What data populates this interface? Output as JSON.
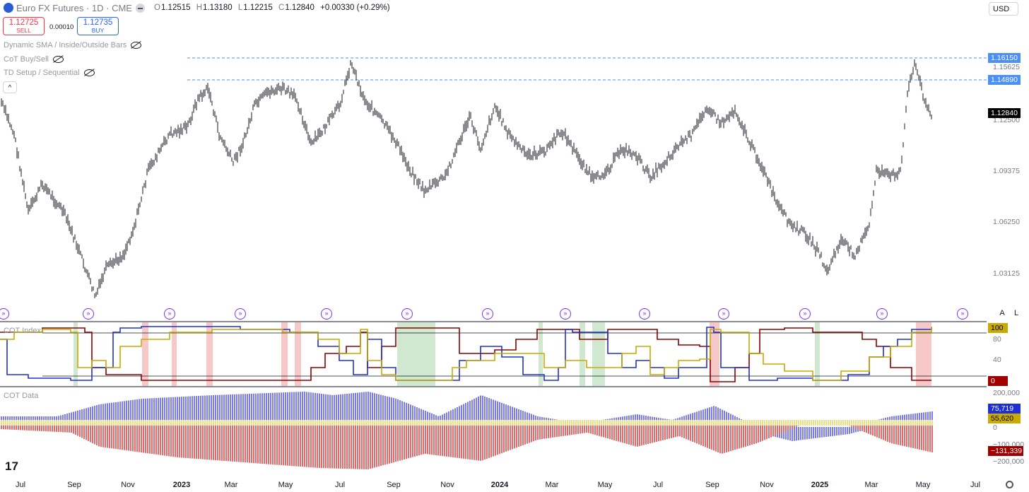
{
  "header": {
    "symbol_title": "Euro FX Futures · 1D · CME",
    "ohlc": {
      "o_key": "O",
      "o": "1.12515",
      "h_key": "H",
      "h": "1.13180",
      "l_key": "L",
      "l": "1.12215",
      "c_key": "C",
      "c": "1.12840",
      "change": "+0.00330 (+0.29%)"
    },
    "currency": "USD"
  },
  "trade": {
    "sell_price": "1.12725",
    "sell_label": "SELL",
    "buy_price": "1.12735",
    "buy_label": "BUY",
    "spread": "0.00010"
  },
  "indicators": [
    "Dynamic SMA / Inside/Outside Bars",
    "CoT Buy/Sell",
    "TD Setup / Sequential"
  ],
  "collapse_symbol": "^",
  "price_axis": {
    "labels": [
      "1.15625",
      "1.12500",
      "1.09375",
      "1.06250",
      "1.03125"
    ],
    "tags": {
      "high1": "1.16150",
      "high2": "1.14890",
      "last": "1.12840"
    },
    "colors": {
      "level": "#4c8ff5",
      "last": "#000000"
    }
  },
  "cot_index": {
    "title": "COT Index",
    "axis_labels": [
      "80",
      "40"
    ],
    "top_tag": "100",
    "bottom_tag": "0",
    "colors": {
      "commercials": "#8b0000",
      "large_specs": "#1f2fd6",
      "small_specs": "#c8aa00",
      "buy_zone": "#cfe8cf",
      "sell_zone": "#f7c8c8"
    }
  },
  "cot_data": {
    "title": "COT Data",
    "axis_labels": [
      "200,000",
      "0",
      "−100,000",
      "−200,000"
    ],
    "tags": {
      "large": "75,719",
      "small": "55,620",
      "commercial": "−131,339"
    },
    "colors": {
      "large": "#7b7bf0",
      "small": "#e8e08a",
      "commercial": "#e36b6b"
    }
  },
  "scale_buttons": {
    "auto": "A",
    "log": "L"
  },
  "time_axis": [
    "Jul",
    "Sep",
    "Nov",
    "2023",
    "Mar",
    "May",
    "Jul",
    "Sep",
    "Nov",
    "2024",
    "Mar",
    "May",
    "Jul",
    "Sep",
    "Nov",
    "2025",
    "Mar",
    "May",
    "Jul"
  ],
  "event_icon": "»",
  "logo": "17"
}
